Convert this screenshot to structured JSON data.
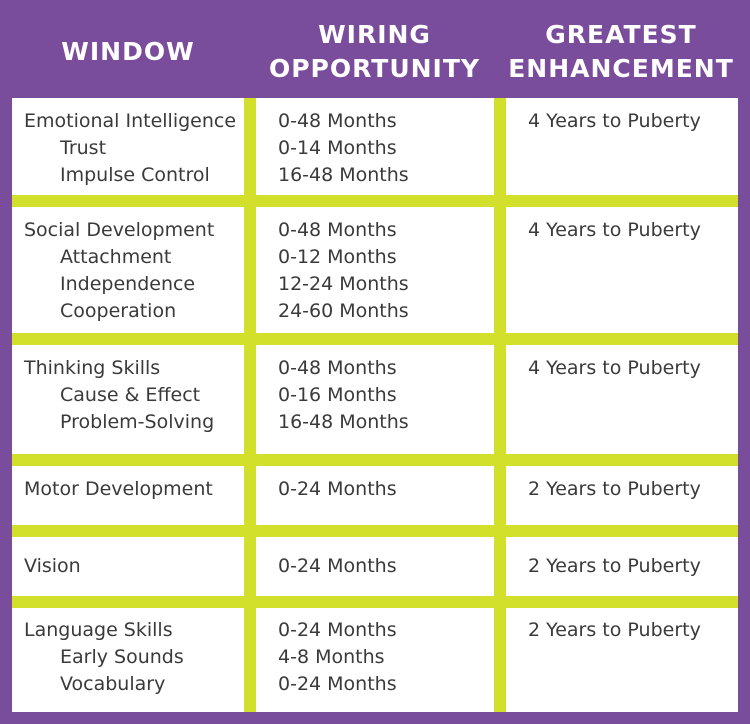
{
  "headers": {
    "window": "WINDOW",
    "wiring_line1": "WIRING",
    "wiring_line2": "OPPORTUNITY",
    "greatest_line1": "GREATEST",
    "greatest_line2": "ENHANCEMENT"
  },
  "rows": [
    {
      "window": [
        "Emotional Intelligence",
        "Trust",
        "Impulse Control"
      ],
      "wiring": [
        "0-48 Months",
        "0-14 Months",
        "16-48 Months"
      ],
      "enhancement": "4 Years to Puberty"
    },
    {
      "window": [
        "Social Development",
        "Attachment",
        "Independence",
        "Cooperation"
      ],
      "wiring": [
        "0-48 Months",
        "0-12 Months",
        "12-24 Months",
        "24-60 Months"
      ],
      "enhancement": "4 Years to Puberty"
    },
    {
      "window": [
        "Thinking Skills",
        "Cause & Effect",
        "Problem-Solving"
      ],
      "wiring": [
        "0-48 Months",
        "0-16 Months",
        "16-48 Months"
      ],
      "enhancement": "4 Years to Puberty"
    },
    {
      "window": [
        "Motor Development"
      ],
      "wiring": [
        "0-24 Months"
      ],
      "enhancement": "2 Years to Puberty"
    },
    {
      "window": [
        "Vision"
      ],
      "wiring": [
        "0-24 Months"
      ],
      "enhancement": "2 Years to Puberty"
    },
    {
      "window": [
        "Language Skills",
        "Early Sounds",
        "Vocabulary"
      ],
      "wiring": [
        "0-24 Months",
        "4-8 Months",
        "0-24 Months"
      ],
      "enhancement": "2 Years to Puberty"
    }
  ],
  "colors": {
    "background": "#7a4c9c",
    "grid_lines": "#d2df2b",
    "cell": "#ffffff",
    "text": "#3a3a3a",
    "header_text": "#ffffff"
  }
}
